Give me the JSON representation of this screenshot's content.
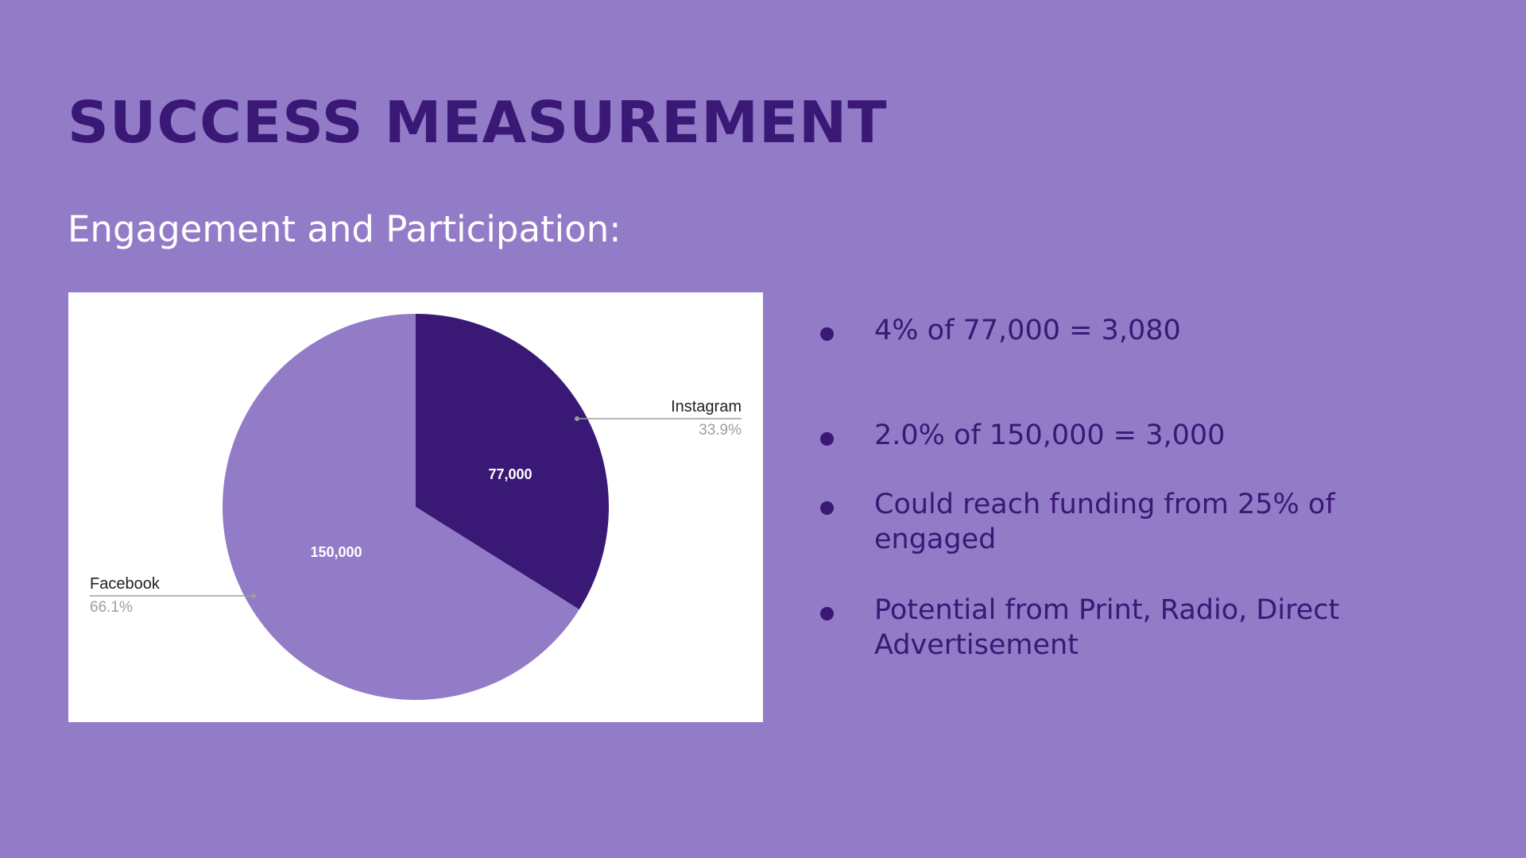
{
  "slide": {
    "title": "SUCCESS MEASUREMENT",
    "subtitle": "Engagement and Participation:",
    "background_color": "#927bc7",
    "title_color": "#3a1876"
  },
  "chart_data": {
    "type": "pie",
    "title": "",
    "slices": [
      {
        "label": "Instagram",
        "value": 77000,
        "value_label": "77,000",
        "percent_label": "33.9%",
        "color": "#3a1876"
      },
      {
        "label": "Facebook",
        "value": 150000,
        "value_label": "150,000",
        "percent_label": "66.1%",
        "color": "#927bc7"
      }
    ],
    "start_angle_deg": 0,
    "direction": "clockwise",
    "legend": "labeled-slices"
  },
  "bullets": [
    {
      "text": "4% of 77,000 = 3,080"
    },
    {
      "text": "2.0% of 150,000 = 3,000"
    },
    {
      "text": "Could reach funding from 25% of engaged"
    },
    {
      "text": "Potential from Print, Radio, Direct Advertisement"
    }
  ]
}
